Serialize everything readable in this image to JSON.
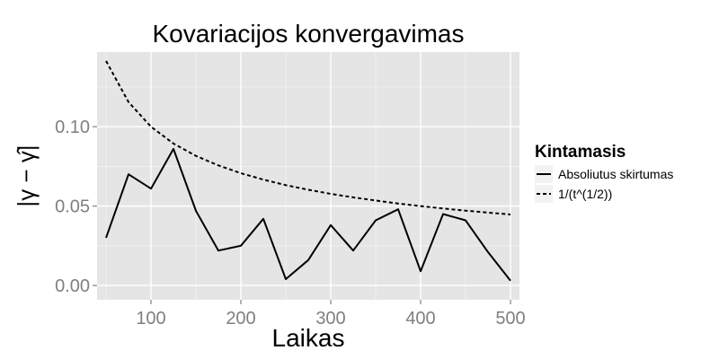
{
  "chart_data": {
    "type": "line",
    "title": "Kovariacijos konvergavimas",
    "xlabel": "Laikas",
    "ylabel": "|γ − γ̂|",
    "xlim": [
      40,
      510
    ],
    "ylim": [
      -0.009,
      0.147
    ],
    "x_ticks": [
      100,
      200,
      300,
      400,
      500
    ],
    "y_ticks": [
      0.0,
      0.05,
      0.1
    ],
    "y_tick_labels": [
      "0.00",
      "0.05",
      "0.10"
    ],
    "grid": true,
    "legend": {
      "title": "Kintamasis",
      "placement": "right",
      "entries": [
        "Absoliutus skirtumas",
        "1/(t^(1/2))"
      ]
    },
    "colors": {
      "panel": "#e5e5e5",
      "grid": "#ffffff",
      "line": "#000000",
      "tick_text": "#7f7f7f"
    },
    "x": [
      50,
      75,
      100,
      125,
      150,
      175,
      200,
      225,
      250,
      275,
      300,
      325,
      350,
      375,
      400,
      425,
      450,
      475,
      500
    ],
    "series": [
      {
        "name": "Absoliutus skirtumas",
        "style": "solid",
        "values": [
          0.03,
          0.07,
          0.061,
          0.086,
          0.047,
          0.022,
          0.025,
          0.042,
          0.004,
          0.016,
          0.038,
          0.022,
          0.041,
          0.048,
          0.009,
          0.045,
          0.041,
          0.021,
          0.003
        ]
      },
      {
        "name": "1/(t^(1/2))",
        "style": "dashed",
        "values": [
          0.1414,
          0.1155,
          0.1,
          0.0894,
          0.0816,
          0.0756,
          0.0707,
          0.0667,
          0.0632,
          0.0603,
          0.0577,
          0.0555,
          0.0535,
          0.0516,
          0.05,
          0.0485,
          0.0471,
          0.0459,
          0.0447
        ]
      }
    ]
  }
}
